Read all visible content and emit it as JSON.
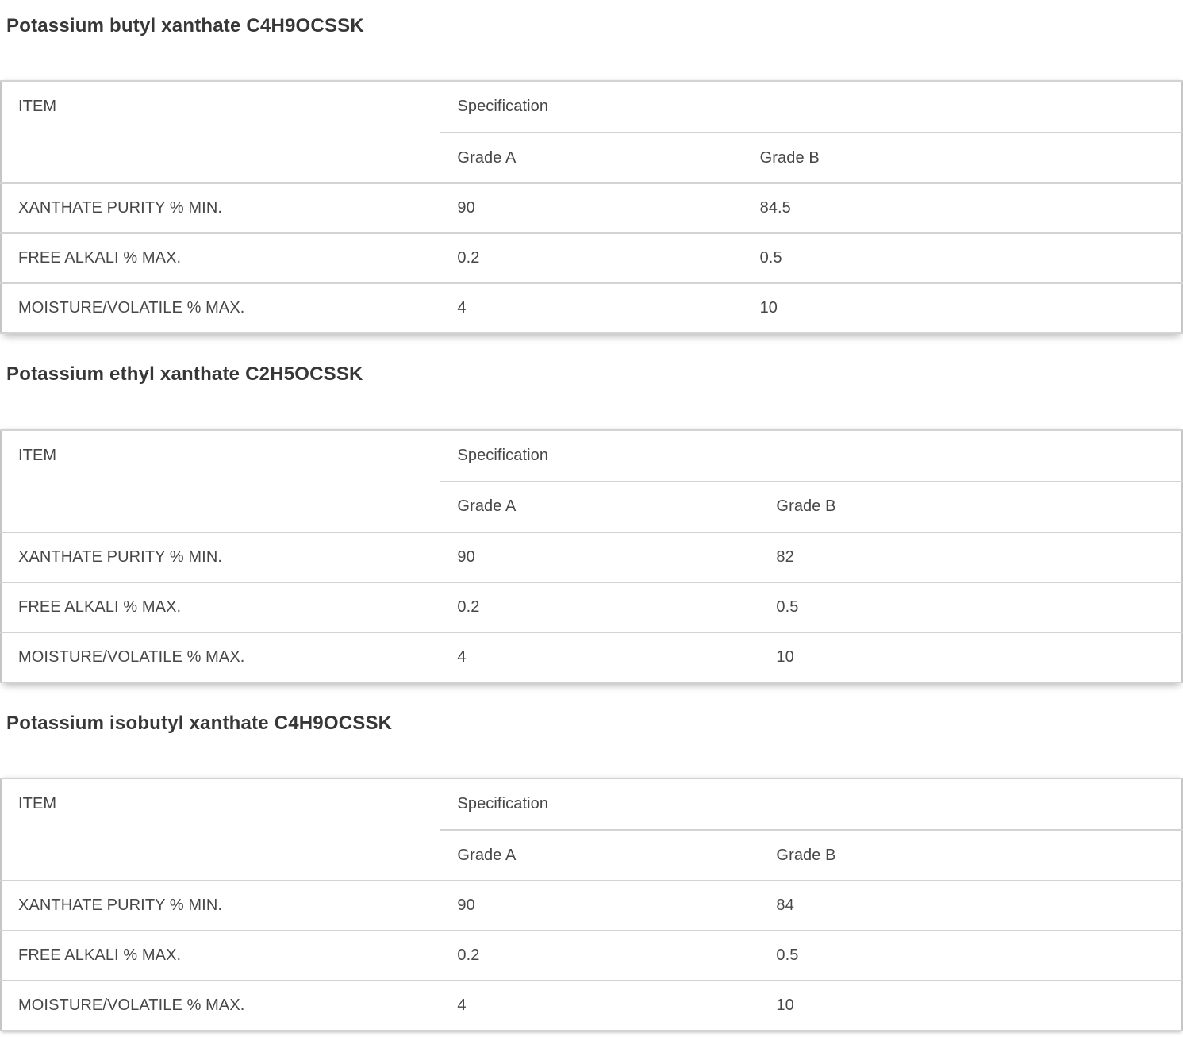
{
  "colors": {
    "background": "#ffffff",
    "title_text": "#373737",
    "cell_text": "#474747",
    "inner_border": "#d3d3d3",
    "outer_border": "#c6c6c6"
  },
  "sections": [
    {
      "title": "Potassium butyl xanthate C4H9OCSSK",
      "table": {
        "headers": {
          "item": "ITEM",
          "spec": "Specification",
          "grade_a": "Grade A",
          "grade_b": "Grade B"
        },
        "rows": [
          {
            "item": "XANTHATE PURITY % MIN.",
            "grade_a": "90",
            "grade_b": "84.5"
          },
          {
            "item": "FREE ALKALI % MAX.",
            "grade_a": "0.2",
            "grade_b": "0.5"
          },
          {
            "item": "MOISTURE/VOLATILE % MAX.",
            "grade_a": "4",
            "grade_b": "10"
          }
        ]
      }
    },
    {
      "title": "Potassium ethyl xanthate C2H5OCSSK",
      "table": {
        "headers": {
          "item": "ITEM",
          "spec": "Specification",
          "grade_a": "Grade A",
          "grade_b": "Grade B"
        },
        "rows": [
          {
            "item": "XANTHATE PURITY % MIN.",
            "grade_a": "90",
            "grade_b": "82"
          },
          {
            "item": "FREE ALKALI % MAX.",
            "grade_a": "0.2",
            "grade_b": "0.5"
          },
          {
            "item": "MOISTURE/VOLATILE % MAX.",
            "grade_a": "4",
            "grade_b": "10"
          }
        ]
      }
    },
    {
      "title": "Potassium isobutyl xanthate C4H9OCSSK",
      "table": {
        "headers": {
          "item": "ITEM",
          "spec": "Specification",
          "grade_a": "Grade A",
          "grade_b": "Grade B"
        },
        "rows": [
          {
            "item": "XANTHATE PURITY % MIN.",
            "grade_a": "90",
            "grade_b": "84"
          },
          {
            "item": "FREE ALKALI % MAX.",
            "grade_a": "0.2",
            "grade_b": "0.5"
          },
          {
            "item": "MOISTURE/VOLATILE % MAX.",
            "grade_a": "4",
            "grade_b": "10"
          }
        ]
      }
    }
  ]
}
